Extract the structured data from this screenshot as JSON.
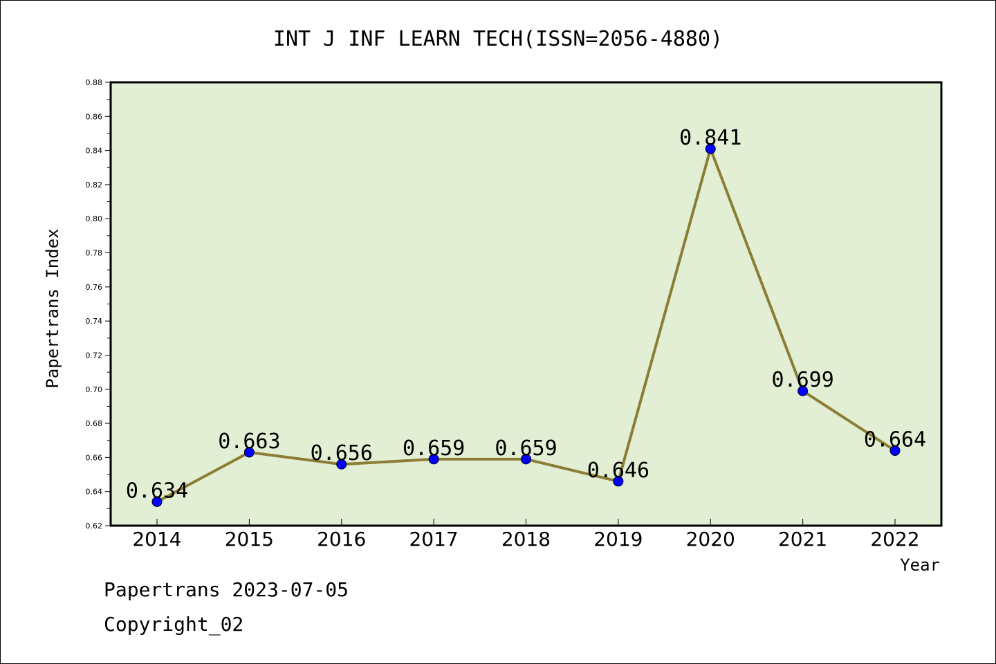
{
  "chart_data": {
    "type": "line",
    "title": "INT J INF LEARN TECH(ISSN=2056-4880)",
    "xlabel": "Year",
    "ylabel": "Papertrans Index",
    "categories": [
      "2014",
      "2015",
      "2016",
      "2017",
      "2018",
      "2019",
      "2020",
      "2021",
      "2022"
    ],
    "values": [
      0.634,
      0.663,
      0.656,
      0.659,
      0.659,
      0.646,
      0.841,
      0.699,
      0.664
    ],
    "data_labels": [
      "0.634",
      "0.663",
      "0.656",
      "0.659",
      "0.659",
      "0.646",
      "0.841",
      "0.699",
      "0.664"
    ],
    "ylim": [
      0.62,
      0.88
    ],
    "yticks": [
      "0.62",
      "0.64",
      "0.66",
      "0.68",
      "0.70",
      "0.72",
      "0.74",
      "0.76",
      "0.78",
      "0.80",
      "0.82",
      "0.84",
      "0.86",
      "0.88"
    ],
    "grid": false,
    "colors": {
      "plot_background": "#e2efd4",
      "line": "#8b7d35",
      "marker": "#0000ff"
    }
  },
  "footer": {
    "line1": "Papertrans 2023-07-05",
    "line2": "Copyright_02"
  }
}
